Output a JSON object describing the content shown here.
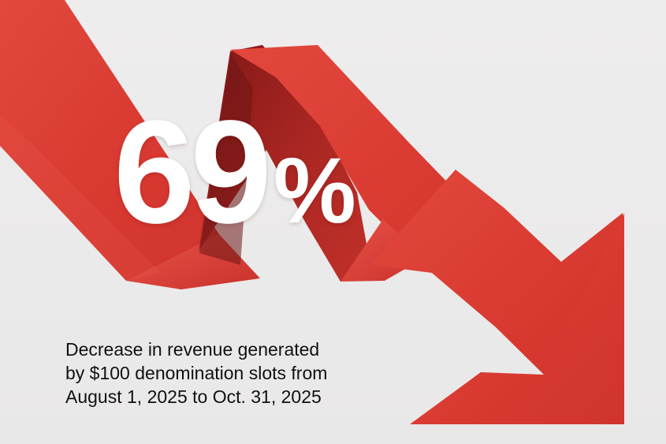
{
  "graphic": {
    "stat_value": "69",
    "stat_unit": "%",
    "caption_lines": [
      "Decrease in revenue generated",
      "by $100 denomination slots from",
      "August 1, 2025 to Oct. 31, 2025"
    ],
    "colors": {
      "background": "#ecebeb",
      "arrow": "#d93a31",
      "arrow_shadow": "#8f1f1d",
      "text_primary": "#ffffff",
      "text_secondary": "#111111"
    },
    "icon": "downward-trend-arrow-icon"
  }
}
